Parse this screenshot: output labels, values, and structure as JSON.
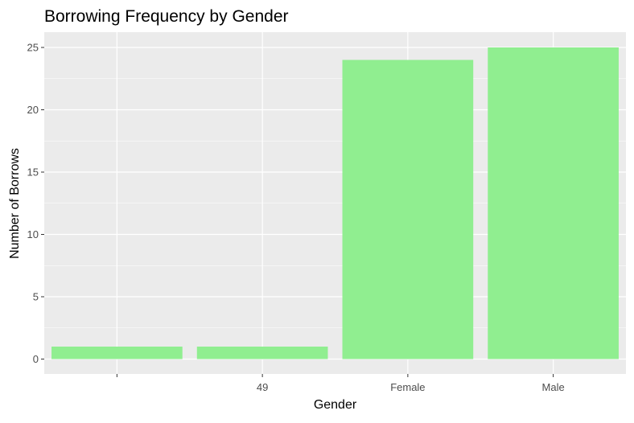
{
  "chart_data": {
    "type": "bar",
    "title": "Borrowing Frequency by Gender",
    "xlabel": "Gender",
    "ylabel": "Number of Borrows",
    "categories": [
      "",
      "49",
      "Female",
      "Male"
    ],
    "values": [
      1,
      1,
      24,
      25
    ],
    "ylim": [
      0,
      26.2
    ],
    "yticks": [
      0,
      5,
      10,
      15,
      20,
      25
    ],
    "ytick_labels": [
      "0",
      "5",
      "10",
      "15",
      "20",
      "25"
    ],
    "grid": true,
    "legend": "none",
    "colors": {
      "bar": "#90ee90",
      "panel": "#ebebeb",
      "grid_major": "#ffffff",
      "text": "#000000",
      "tick_text": "#4d4d4d"
    }
  }
}
